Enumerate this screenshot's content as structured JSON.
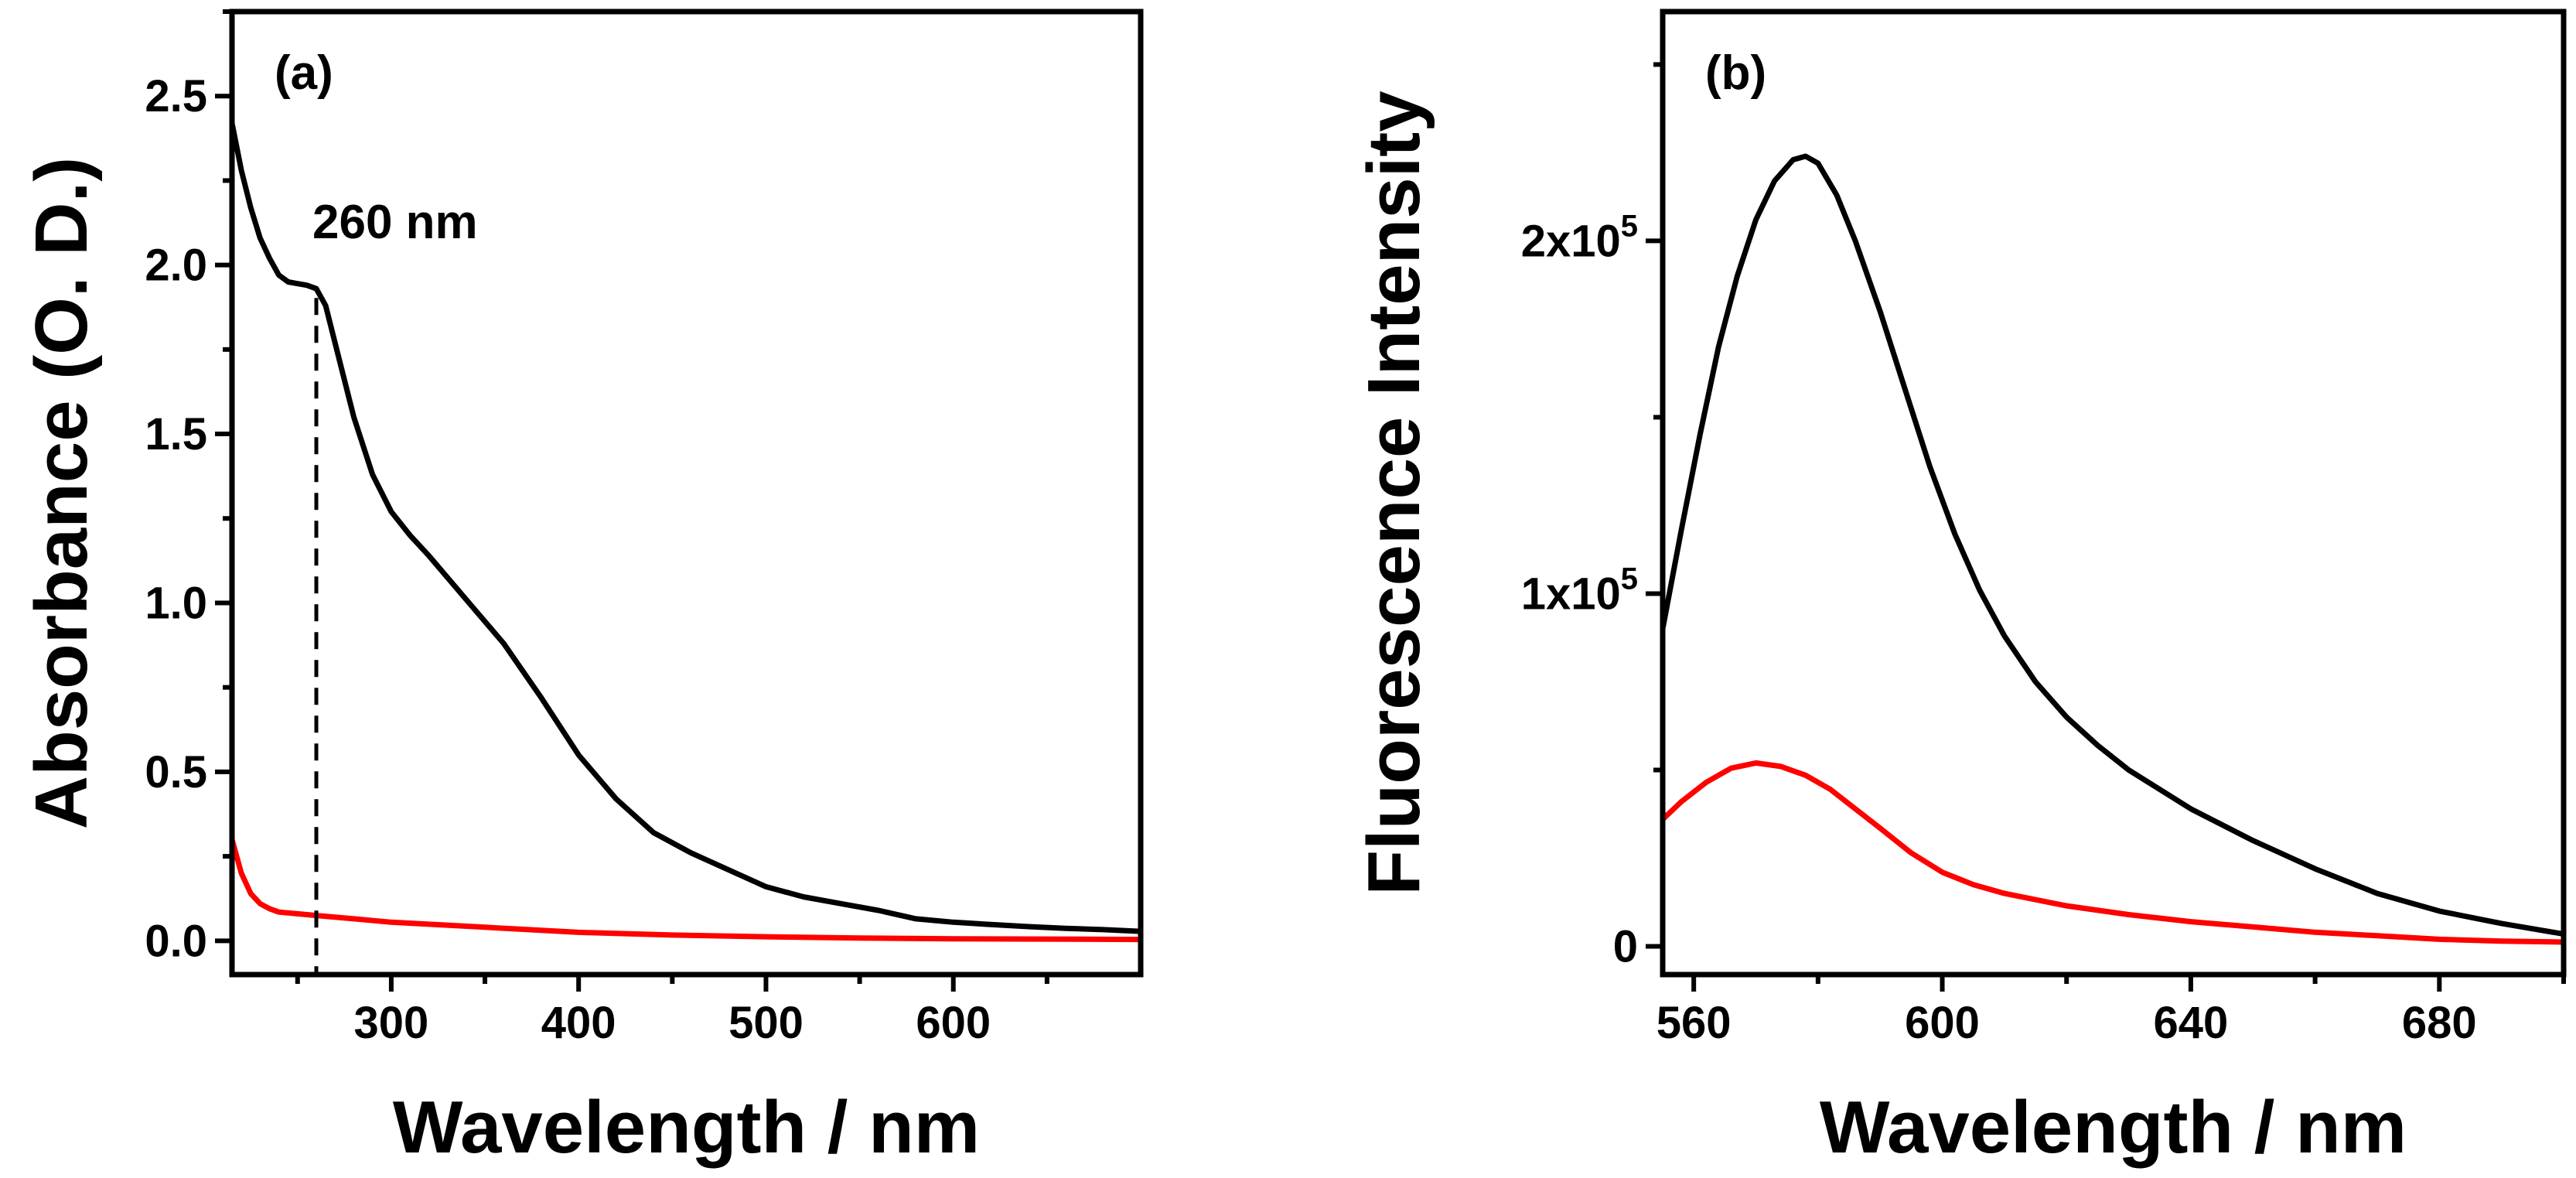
{
  "chart_data": [
    {
      "type": "line",
      "panel": "(a)",
      "xlabel": "Wavelength / nm",
      "ylabel": "Absorbance (O. D.)",
      "xlim": [
        215,
        700
      ],
      "ylim": [
        -0.1,
        2.75
      ],
      "x_ticks": [
        300,
        400,
        500,
        600
      ],
      "y_ticks": [
        0.0,
        0.5,
        1.0,
        1.5,
        2.0,
        2.5
      ],
      "x_tick_labels": [
        "300",
        "400",
        "500",
        "600"
      ],
      "y_tick_labels": [
        "0.0",
        "0.5",
        "1.0",
        "1.5",
        "2.0",
        "2.5"
      ],
      "annotations": [
        {
          "text": "260 nm",
          "x": 260
        }
      ],
      "series": [
        {
          "name": "black",
          "color": "#000000",
          "x": [
            215,
            220,
            225,
            230,
            235,
            240,
            245,
            250,
            255,
            260,
            265,
            270,
            280,
            290,
            300,
            310,
            320,
            340,
            360,
            380,
            400,
            420,
            440,
            460,
            480,
            500,
            520,
            540,
            560,
            580,
            600,
            620,
            640,
            660,
            680,
            700
          ],
          "y": [
            2.42,
            2.28,
            2.17,
            2.08,
            2.02,
            1.97,
            1.95,
            1.945,
            1.94,
            1.93,
            1.88,
            1.77,
            1.55,
            1.38,
            1.27,
            1.2,
            1.14,
            1.01,
            0.88,
            0.72,
            0.55,
            0.42,
            0.32,
            0.26,
            0.21,
            0.16,
            0.13,
            0.11,
            0.09,
            0.065,
            0.055,
            0.048,
            0.042,
            0.037,
            0.033,
            0.028
          ]
        },
        {
          "name": "red",
          "color": "#ff0000",
          "x": [
            215,
            220,
            225,
            230,
            235,
            240,
            250,
            260,
            280,
            300,
            350,
            400,
            450,
            500,
            550,
            600,
            650,
            700
          ],
          "y": [
            0.3,
            0.2,
            0.14,
            0.11,
            0.095,
            0.085,
            0.08,
            0.075,
            0.065,
            0.055,
            0.04,
            0.025,
            0.017,
            0.012,
            0.008,
            0.006,
            0.005,
            0.004
          ]
        }
      ]
    },
    {
      "type": "line",
      "panel": "(b)",
      "xlabel": "Wavelength / nm",
      "ylabel": "Fluorescence Intensity",
      "xlim": [
        555,
        700
      ],
      "ylim": [
        -8000,
        265000
      ],
      "x_ticks": [
        560,
        600,
        640,
        680
      ],
      "y_ticks": [
        0,
        100000,
        200000
      ],
      "x_tick_labels": [
        "560",
        "600",
        "640",
        "680"
      ],
      "y_tick_labels": [
        {
          "base": "0",
          "exp": ""
        },
        {
          "base": "1x10",
          "exp": "5"
        },
        {
          "base": "2x10",
          "exp": "5"
        }
      ],
      "series": [
        {
          "name": "black",
          "color": "#000000",
          "x": [
            555,
            558,
            561,
            564,
            567,
            570,
            573,
            576,
            578,
            580,
            583,
            586,
            590,
            594,
            598,
            602,
            606,
            610,
            615,
            620,
            625,
            630,
            640,
            650,
            660,
            670,
            680,
            690,
            700
          ],
          "y": [
            90000,
            118000,
            145000,
            170000,
            190000,
            206000,
            217000,
            223000,
            224000,
            222000,
            213000,
            200000,
            180000,
            158000,
            136000,
            117000,
            101000,
            88000,
            75000,
            65000,
            57000,
            50000,
            39000,
            30000,
            22000,
            15000,
            10000,
            6500,
            3500
          ]
        },
        {
          "name": "red",
          "color": "#ff0000",
          "x": [
            555,
            558,
            562,
            566,
            570,
            574,
            578,
            582,
            586,
            590,
            595,
            600,
            605,
            610,
            620,
            630,
            640,
            650,
            660,
            670,
            680,
            690,
            700
          ],
          "y": [
            36000,
            41000,
            46500,
            50500,
            52000,
            51000,
            48500,
            44500,
            39000,
            33500,
            26500,
            21000,
            17500,
            15000,
            11500,
            9000,
            7000,
            5500,
            4000,
            3000,
            2000,
            1500,
            1200
          ]
        }
      ]
    }
  ]
}
